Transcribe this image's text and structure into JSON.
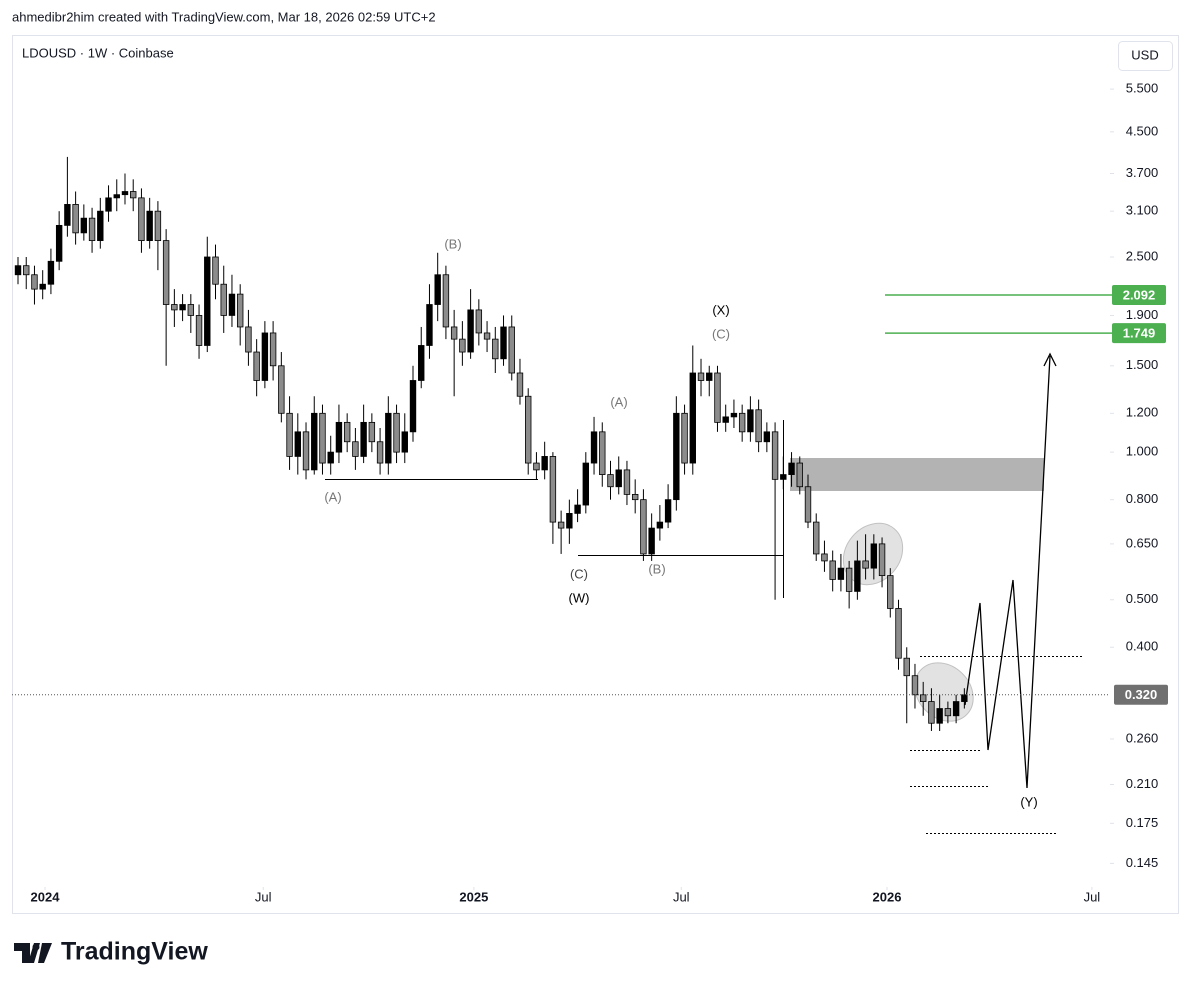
{
  "header": {
    "credit": "ahmedibr2him created with TradingView.com, Mar 18, 2026 02:59 UTC+2",
    "symbol": "LDOUSD · 1W · Coinbase",
    "currency": "USD",
    "brand": "TradingView"
  },
  "chart_data": {
    "type": "candlestick",
    "log_scale": true,
    "up_color": "#000000",
    "down_color": "#8c8c8c",
    "open": [
      2.3,
      2.4,
      2.3,
      2.15,
      2.2,
      2.45,
      2.9,
      3.2,
      2.8,
      3.0,
      2.7,
      3.1,
      3.3,
      3.35,
      3.4,
      3.3,
      2.7,
      3.1,
      2.7,
      2.0,
      1.95,
      2.0,
      1.9,
      1.65,
      2.5,
      2.2,
      1.9,
      2.1,
      1.8,
      1.6,
      1.4,
      1.75,
      1.5,
      1.2,
      0.98,
      1.1,
      0.92,
      1.2,
      0.95,
      1.0,
      1.15,
      1.05,
      0.98,
      1.15,
      1.05,
      0.95,
      1.2,
      1.0,
      1.1,
      1.4,
      1.65,
      2.0,
      2.3,
      1.8,
      1.7,
      1.6,
      1.95,
      1.75,
      1.7,
      1.55,
      1.8,
      1.45,
      1.3,
      0.95,
      0.92,
      0.98,
      0.72,
      0.7,
      0.75,
      0.78,
      0.95,
      1.1,
      0.9,
      0.85,
      0.92,
      0.82,
      0.8,
      0.62,
      0.7,
      0.72,
      0.8,
      1.2,
      0.95,
      1.45,
      1.4,
      1.45,
      1.15,
      1.18,
      1.2,
      1.1,
      1.22,
      1.05,
      1.1,
      0.88,
      0.9,
      0.95,
      0.85,
      0.72,
      0.62,
      0.6,
      0.55,
      0.58,
      0.52,
      0.6,
      0.58,
      0.65,
      0.56,
      0.48,
      0.38,
      0.35,
      0.32,
      0.31,
      0.28,
      0.3,
      0.29,
      0.31
    ],
    "high": [
      2.5,
      2.5,
      2.4,
      2.35,
      2.6,
      3.1,
      4.0,
      3.4,
      3.2,
      3.15,
      3.3,
      3.5,
      3.6,
      3.7,
      3.6,
      3.45,
      3.3,
      3.25,
      2.85,
      2.15,
      2.1,
      2.1,
      2.0,
      2.75,
      2.65,
      2.4,
      2.3,
      2.2,
      1.95,
      1.7,
      1.85,
      1.85,
      1.6,
      1.3,
      1.2,
      1.15,
      1.3,
      1.25,
      1.08,
      1.25,
      1.2,
      1.12,
      1.25,
      1.2,
      1.12,
      1.3,
      1.25,
      1.2,
      1.5,
      1.8,
      2.2,
      2.55,
      2.4,
      1.95,
      1.85,
      2.15,
      2.05,
      1.85,
      1.8,
      1.9,
      1.9,
      1.55,
      1.35,
      1.0,
      1.05,
      1.0,
      0.76,
      0.8,
      0.84,
      1.0,
      1.18,
      1.15,
      0.96,
      0.98,
      0.96,
      0.88,
      0.84,
      0.75,
      0.78,
      0.86,
      1.3,
      1.25,
      1.65,
      1.55,
      1.5,
      1.5,
      1.25,
      1.28,
      1.25,
      1.3,
      1.28,
      1.15,
      1.15,
      0.98,
      1.0,
      0.98,
      0.9,
      0.75,
      0.66,
      0.63,
      0.62,
      0.6,
      0.66,
      0.68,
      0.68,
      0.67,
      0.58,
      0.5,
      0.4,
      0.37,
      0.34,
      0.33,
      0.32,
      0.31,
      0.32,
      0.33
    ],
    "low": [
      2.2,
      2.15,
      2.0,
      2.05,
      2.1,
      2.35,
      2.75,
      2.65,
      2.7,
      2.55,
      2.6,
      2.95,
      3.1,
      3.2,
      3.1,
      2.55,
      2.6,
      2.35,
      1.5,
      1.8,
      1.85,
      1.75,
      1.55,
      1.6,
      2.05,
      1.75,
      1.8,
      1.65,
      1.5,
      1.3,
      1.35,
      1.4,
      1.15,
      0.92,
      0.9,
      0.88,
      0.9,
      0.9,
      0.9,
      0.95,
      1.0,
      0.92,
      0.95,
      1.0,
      0.9,
      0.9,
      0.95,
      0.95,
      1.05,
      1.35,
      1.55,
      1.85,
      1.7,
      1.3,
      1.5,
      1.55,
      1.65,
      1.6,
      1.45,
      1.5,
      1.4,
      1.25,
      0.9,
      0.88,
      0.88,
      0.65,
      0.62,
      0.65,
      0.72,
      0.75,
      0.9,
      0.85,
      0.8,
      0.82,
      0.78,
      0.75,
      0.6,
      0.6,
      0.66,
      0.7,
      0.76,
      0.9,
      0.9,
      1.3,
      1.3,
      1.1,
      1.1,
      1.12,
      1.05,
      1.05,
      1.0,
      1.0,
      0.5,
      0.84,
      0.85,
      0.82,
      0.7,
      0.6,
      0.57,
      0.52,
      0.52,
      0.48,
      0.5,
      0.55,
      0.55,
      0.53,
      0.46,
      0.36,
      0.28,
      0.3,
      0.29,
      0.27,
      0.27,
      0.28,
      0.28,
      0.3
    ],
    "close": [
      2.4,
      2.3,
      2.15,
      2.2,
      2.45,
      2.9,
      3.2,
      2.8,
      3.0,
      2.7,
      3.1,
      3.3,
      3.35,
      3.4,
      3.3,
      2.7,
      3.1,
      2.7,
      2.0,
      1.95,
      2.0,
      1.9,
      1.65,
      2.5,
      2.2,
      1.9,
      2.1,
      1.8,
      1.6,
      1.4,
      1.75,
      1.5,
      1.2,
      0.98,
      1.1,
      0.92,
      1.2,
      0.95,
      1.0,
      1.15,
      1.05,
      0.98,
      1.15,
      1.05,
      0.95,
      1.2,
      1.0,
      1.1,
      1.4,
      1.65,
      2.0,
      2.3,
      1.8,
      1.7,
      1.6,
      1.95,
      1.75,
      1.7,
      1.55,
      1.8,
      1.45,
      1.3,
      0.95,
      0.92,
      0.98,
      0.72,
      0.7,
      0.75,
      0.78,
      0.95,
      1.1,
      0.9,
      0.85,
      0.92,
      0.82,
      0.8,
      0.62,
      0.7,
      0.72,
      0.8,
      1.2,
      0.95,
      1.45,
      1.4,
      1.45,
      1.15,
      1.18,
      1.2,
      1.1,
      1.22,
      1.05,
      1.1,
      0.88,
      0.9,
      0.95,
      0.85,
      0.72,
      0.62,
      0.6,
      0.55,
      0.58,
      0.52,
      0.6,
      0.58,
      0.65,
      0.56,
      0.48,
      0.38,
      0.35,
      0.32,
      0.31,
      0.28,
      0.3,
      0.29,
      0.31,
      0.32
    ],
    "xlim": [
      -0.73,
      132.7
    ],
    "xticks": [
      {
        "value": 3.28,
        "label": "2024"
      },
      {
        "value": 29.8,
        "label": "Jul"
      },
      {
        "value": 55.4,
        "label": "2025"
      },
      {
        "value": 80.6,
        "label": "Jul"
      },
      {
        "value": 105.6,
        "label": "2026"
      },
      {
        "value": 130.5,
        "label": "Jul"
      }
    ],
    "ylim": [
      0.131,
      7.09
    ],
    "yticks": [
      {
        "value": 5.5,
        "label": "5.500"
      },
      {
        "value": 4.5,
        "label": "4.500"
      },
      {
        "value": 3.7,
        "label": "3.700"
      },
      {
        "value": 3.1,
        "label": "3.100"
      },
      {
        "value": 2.5,
        "label": "2.500"
      },
      {
        "value": 1.9,
        "label": "1.900"
      },
      {
        "value": 1.5,
        "label": "1.500"
      },
      {
        "value": 1.2,
        "label": "1.200"
      },
      {
        "value": 1.0,
        "label": "1.000"
      },
      {
        "value": 0.8,
        "label": "0.800"
      },
      {
        "value": 0.65,
        "label": "0.650"
      },
      {
        "value": 0.5,
        "label": "0.500"
      },
      {
        "value": 0.4,
        "label": "0.400"
      },
      {
        "value": 0.26,
        "label": "0.260"
      },
      {
        "value": 0.21,
        "label": "0.210"
      },
      {
        "value": 0.175,
        "label": "0.175"
      },
      {
        "value": 0.145,
        "label": "0.145"
      }
    ],
    "target_levels": [
      2.092,
      1.749
    ],
    "target_color": "#4caf50",
    "last_price": {
      "value": 0.32,
      "label": "0.320"
    },
    "annotations": [
      "(A)",
      "(B)",
      "(C)",
      "(W)",
      "(B)",
      "(A)",
      "(X)",
      "(C)",
      "(Y)"
    ]
  }
}
